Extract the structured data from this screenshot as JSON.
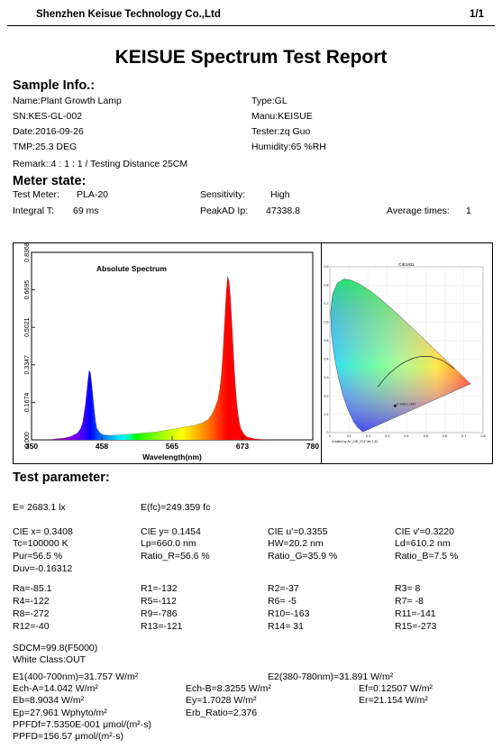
{
  "header": {
    "company": "Shenzhen Keisue Technology Co.,Ltd",
    "page": "1/1"
  },
  "title": "KEISUE Spectrum Test Report",
  "sample_info": {
    "heading": "Sample Info.:",
    "name": "Name:Plant Growth Lamp",
    "type": "Type:GL",
    "sn": "SN:KES-GL-002",
    "manu": "Manu:KEISUE",
    "date": "Date:2016-09-26",
    "tester": "Tester:zq Guo",
    "tmp": "TMP:25.3 DEG",
    "humidity": "Humidity:65 %RH",
    "remark": "Remark::4  :  1  :  1 /  Testing  Distance  25CM"
  },
  "meter_state": {
    "heading": "Meter state:",
    "test_meter_label": "Test Meter:",
    "test_meter_value": "PLA-20",
    "sensitivity_label": "Sensitivity:",
    "sensitivity_value": "High",
    "integral_label": "Integral T:",
    "integral_value": "69 ms",
    "peakad_label": "PeakAD Ip:",
    "peakad_value": "47338.8",
    "avg_label": "Average times:",
    "avg_value": "1"
  },
  "chart_data": {
    "type": "area",
    "title": "Absolute Spectrum",
    "xlabel": "Wavelength(nm)",
    "xlim": [
      350,
      780
    ],
    "ylim": [
      0,
      0.8368
    ],
    "x_ticks": [
      "350",
      "458",
      "565",
      "673",
      "780"
    ],
    "y_ticks": [
      "0.000",
      "0.1674",
      "0.3347",
      "0.5021",
      "0.6695",
      "0.8368"
    ],
    "x": [
      350,
      380,
      400,
      410,
      420,
      425,
      428,
      430,
      432,
      434,
      436,
      438,
      440,
      442,
      444,
      446,
      448,
      450,
      455,
      460,
      470,
      480,
      500,
      520,
      540,
      560,
      580,
      600,
      610,
      620,
      625,
      630,
      635,
      638,
      640,
      642,
      644,
      646,
      648,
      650,
      652,
      654,
      656,
      658,
      660,
      662,
      664,
      666,
      668,
      670,
      675,
      680,
      690,
      700,
      720,
      780
    ],
    "values": [
      0,
      0.002,
      0.008,
      0.015,
      0.03,
      0.05,
      0.075,
      0.11,
      0.15,
      0.2,
      0.26,
      0.31,
      0.3,
      0.25,
      0.19,
      0.13,
      0.08,
      0.05,
      0.03,
      0.022,
      0.02,
      0.021,
      0.025,
      0.03,
      0.035,
      0.045,
      0.055,
      0.065,
      0.075,
      0.09,
      0.11,
      0.14,
      0.18,
      0.23,
      0.28,
      0.36,
      0.46,
      0.57,
      0.67,
      0.73,
      0.71,
      0.64,
      0.54,
      0.43,
      0.32,
      0.23,
      0.16,
      0.11,
      0.075,
      0.05,
      0.025,
      0.012,
      0.005,
      0.002,
      0.0,
      0
    ]
  },
  "cie": {
    "title": "CIE1931",
    "footer": "Created by AV_CIE_XYZ Ver 1.32",
    "x_ticks": [
      "0",
      "0.1",
      "0.2",
      "0.3",
      "0.4",
      "0.5",
      "0.6",
      "0.7",
      "0.8"
    ],
    "y_ticks": [
      "0.9",
      "0.8",
      "0.7",
      "0.6",
      "0.5",
      "0.4",
      "0.3",
      "0.2",
      "0.1",
      "0"
    ],
    "point": {
      "x": 0.3408,
      "y": 0.1454
    },
    "point_label": "0.3408,0.1454"
  },
  "test_param": {
    "heading": "Test parameter:",
    "e": "E=  2683.1 lx",
    "efc": "E(fc)=249.359 fc",
    "row1": [
      "CIE x= 0.3408",
      "CIE y= 0.1454",
      "CIE u'=0.3355",
      "CIE v'=0.3220"
    ],
    "row2": [
      "Tc=100000 K",
      "Lp=660.0 nm",
      "HW=20.2 nm",
      "Ld=610.2 nm"
    ],
    "row3": [
      "Pur=56.5 %",
      "Ratio_R=56.6 %",
      "Ratio_G=35.9 %",
      "Ratio_B=7.5 %"
    ],
    "duv": "Duv=-0.16312",
    "r_row1": [
      "Ra=-85.1",
      "R1=-132",
      "R2=-37",
      "R3=  8"
    ],
    "r_row2": [
      "R4=-122",
      "R5=-112",
      "R6=  -5",
      "R7=  -8"
    ],
    "r_row3": [
      "R8=-272",
      "R9=-786",
      "R10=-163",
      "R11=-141"
    ],
    "r_row4": [
      "R12=-40",
      "R13=-121",
      "R14= 31",
      "R15=-273"
    ],
    "sdcm": "SDCM=99.8(F5000)",
    "white_class": "White Class:OUT",
    "e1": "E1(400-700nm)=31.757 W/m²",
    "e2": "E2(380-780nm)=31.891 W/m²",
    "ech_a": "Ech-A=14.042 W/m²",
    "ech_b": "Ech-B=8.3255 W/m²",
    "ef": "Ef=0.12507 W/m²",
    "eb": "Eb=8.9034 W/m²",
    "ey": "Ey=1.7028 W/m²",
    "er": "Er=21.154 W/m²",
    "ep": "Ep=27.961 Wphyto/m²",
    "erb": "Erb_Ratio=2.376",
    "ppfdf": "PPFDf=7.5350E-001 μmol/(m²·s)",
    "ppfd": "PPFD=156.57 μmol/(m²·s)"
  }
}
